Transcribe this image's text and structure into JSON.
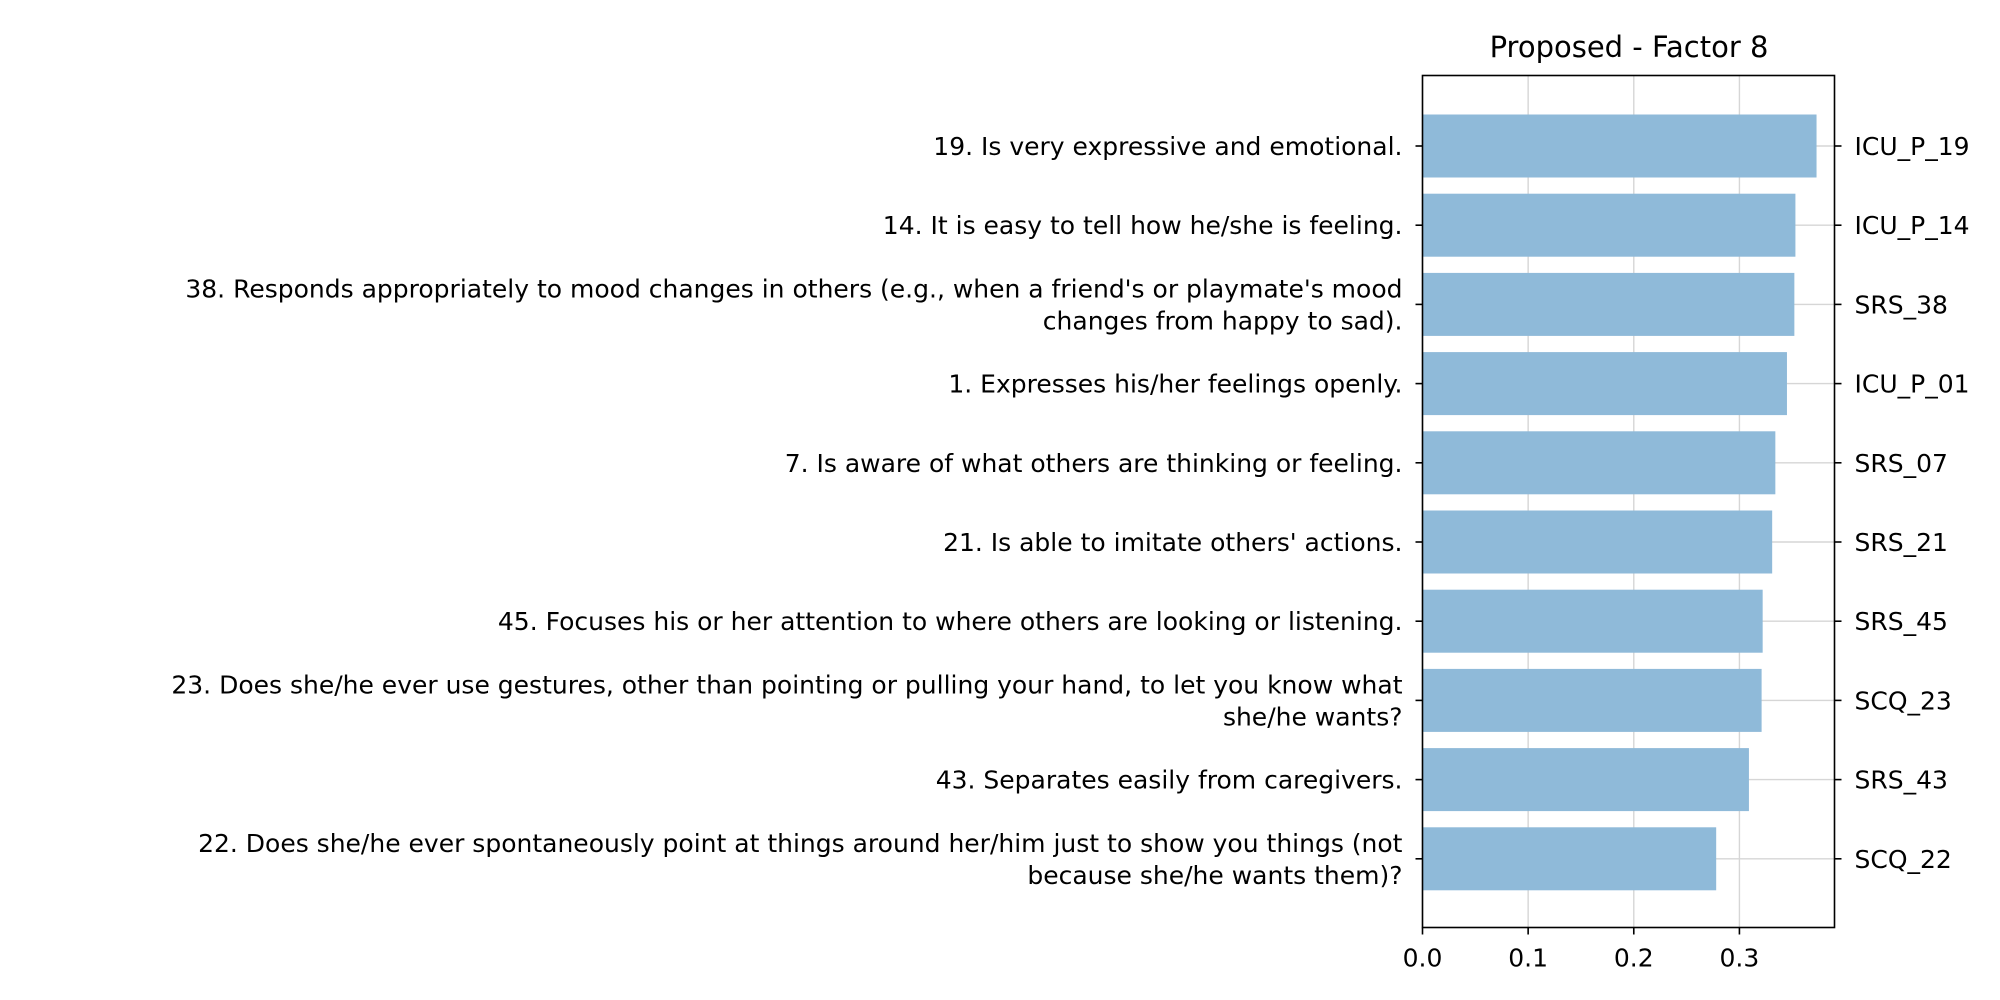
{
  "chart_data": {
    "type": "bar",
    "orientation": "horizontal",
    "title": "Proposed - Factor 8",
    "xlabel": "",
    "ylabel": "",
    "xlim": [
      0,
      0.39
    ],
    "xticks": [
      "0.0",
      "0.1",
      "0.2",
      "0.3"
    ],
    "grid": true,
    "bar_color": "#8fbad9",
    "items": [
      {
        "label": [
          "19. Is very expressive and emotional."
        ],
        "code": "ICU_P_19",
        "value": 0.373
      },
      {
        "label": [
          "14. It is easy to tell how he/she is feeling."
        ],
        "code": "ICU_P_14",
        "value": 0.353
      },
      {
        "label": [
          "38. Responds appropriately to mood changes in others (e.g., when a friend's or playmate's mood",
          "changes from happy to sad)."
        ],
        "code": "SRS_38",
        "value": 0.352
      },
      {
        "label": [
          "1. Expresses his/her feelings openly."
        ],
        "code": "ICU_P_01",
        "value": 0.345
      },
      {
        "label": [
          "7. Is aware of what others are thinking or feeling."
        ],
        "code": "SRS_07",
        "value": 0.334
      },
      {
        "label": [
          "21. Is able to imitate others' actions."
        ],
        "code": "SRS_21",
        "value": 0.331
      },
      {
        "label": [
          "45. Focuses his or her attention to where others are looking or listening."
        ],
        "code": "SRS_45",
        "value": 0.322
      },
      {
        "label": [
          "23. Does she/he ever use gestures, other than pointing or pulling your hand, to let you know what",
          "she/he wants?"
        ],
        "code": "SCQ_23",
        "value": 0.321
      },
      {
        "label": [
          "43. Separates easily from caregivers."
        ],
        "code": "SRS_43",
        "value": 0.309
      },
      {
        "label": [
          "22. Does she/he ever spontaneously point at things around her/him just to show you things (not",
          "because she/he wants them)?"
        ],
        "code": "SCQ_22",
        "value": 0.278
      }
    ]
  }
}
